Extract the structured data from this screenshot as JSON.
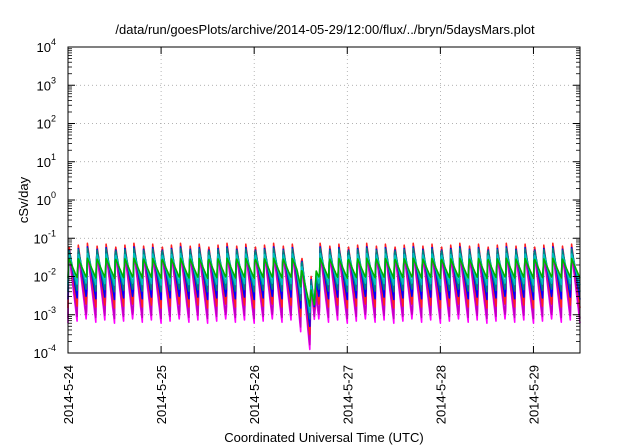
{
  "chart_data": {
    "type": "line",
    "title": "/data/run/goesPlots/archive/2014-05-29/12:00/flux/../bryn/5daysMars.plot",
    "xlabel": "Coordinated Universal Time (UTC)",
    "ylabel": "cSv/day",
    "y_scale": "log",
    "ylim": [
      0.0001,
      10000
    ],
    "y_ticks": [
      {
        "base": "10",
        "exp": "-4",
        "value": 0.0001
      },
      {
        "base": "10",
        "exp": "-3",
        "value": 0.001
      },
      {
        "base": "10",
        "exp": "-2",
        "value": 0.01
      },
      {
        "base": "10",
        "exp": "-1",
        "value": 0.1
      },
      {
        "base": "10",
        "exp": "0",
        "value": 1
      },
      {
        "base": "10",
        "exp": "1",
        "value": 10
      },
      {
        "base": "10",
        "exp": "2",
        "value": 100
      },
      {
        "base": "10",
        "exp": "3",
        "value": 1000
      },
      {
        "base": "10",
        "exp": "4",
        "value": 10000
      }
    ],
    "x_range": [
      "2014-05-24T00:00",
      "2014-05-29T12:00"
    ],
    "x_ticks": [
      {
        "label": "2014-5-24",
        "value": "2014-05-24T00:00"
      },
      {
        "label": "2014-5-25",
        "value": "2014-05-25T00:00"
      },
      {
        "label": "2014-5-26",
        "value": "2014-05-26T00:00"
      },
      {
        "label": "2014-5-27",
        "value": "2014-05-27T00:00"
      },
      {
        "label": "2014-5-28",
        "value": "2014-05-28T00:00"
      },
      {
        "label": "2014-5-29",
        "value": "2014-05-29T00:00"
      }
    ],
    "grid": true,
    "cycle_hours": 2.4,
    "series": [
      {
        "color": "#ff00ff",
        "peak": 0.045,
        "trough": 0.0006
      },
      {
        "color": "#c000c0",
        "peak": 0.05,
        "trough": 0.0008
      },
      {
        "color": "#ff2020",
        "peak": 0.075,
        "trough": 0.0015
      },
      {
        "color": "#0000ff",
        "peak": 0.06,
        "trough": 0.0025
      },
      {
        "color": "#008080",
        "peak": 0.055,
        "trough": 0.004
      },
      {
        "color": "#00c0c0",
        "peak": 0.04,
        "trough": 0.006
      },
      {
        "color": "#00b000",
        "peak": 0.03,
        "trough": 0.009
      }
    ],
    "event": {
      "start": "2014-05-26T11:00",
      "minimum": "2014-05-26T15:30",
      "end": "2014-05-26T16:00",
      "min_factor": 0.1
    }
  }
}
